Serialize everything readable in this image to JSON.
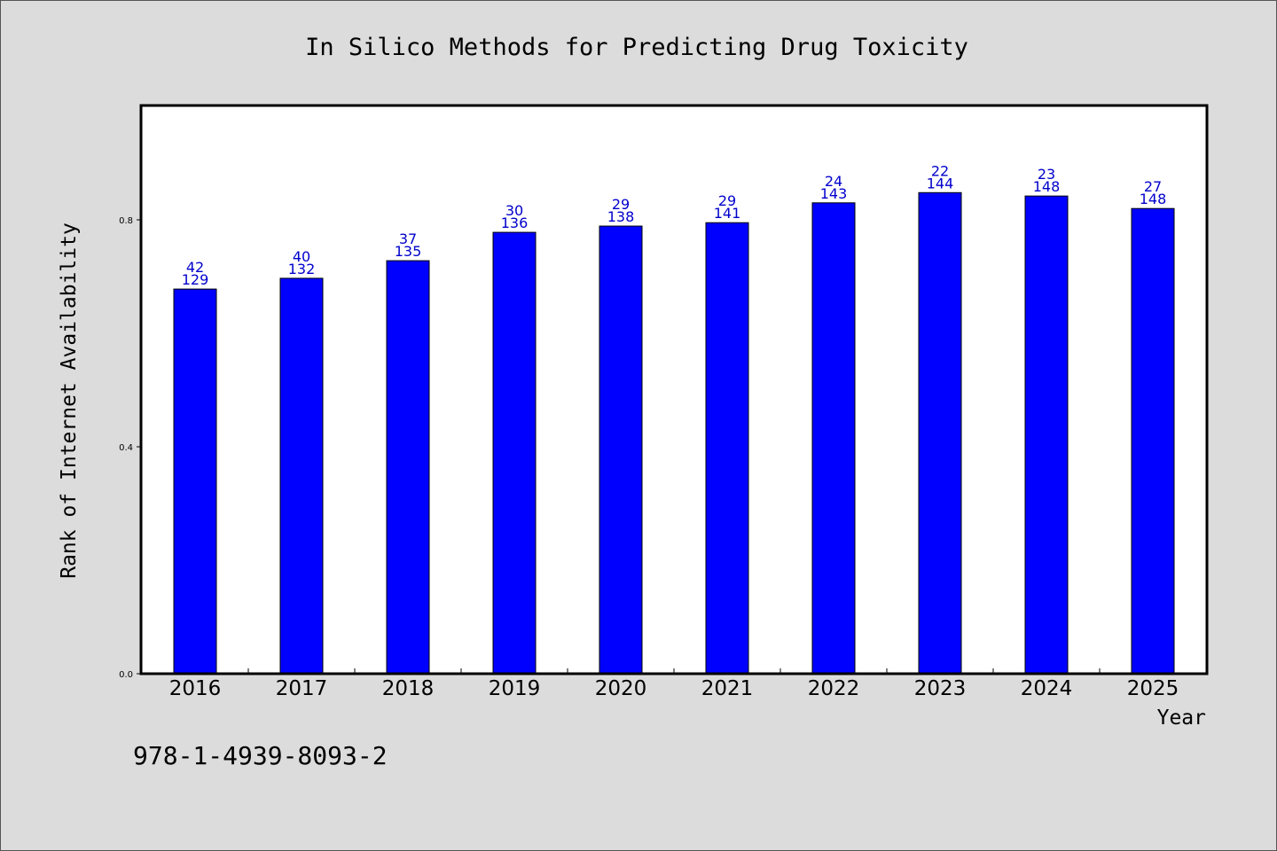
{
  "chart_data": {
    "type": "bar",
    "title": "In Silico Methods for Predicting Drug Toxicity",
    "xlabel": "Year",
    "ylabel": "Rank of Internet Availability",
    "categories": [
      "2016",
      "2017",
      "2018",
      "2019",
      "2020",
      "2021",
      "2022",
      "2023",
      "2024",
      "2025"
    ],
    "series": [
      {
        "values": [
          0.678,
          0.697,
          0.728,
          0.778,
          0.789,
          0.795,
          0.83,
          0.848,
          0.842,
          0.82
        ],
        "label_top": [
          "42",
          "40",
          "37",
          "30",
          "29",
          "29",
          "24",
          "22",
          "23",
          "27"
        ],
        "label_bottom": [
          "129",
          "132",
          "135",
          "136",
          "138",
          "141",
          "143",
          "144",
          "148",
          "148"
        ]
      }
    ],
    "ylim": [
      0,
      1.0
    ],
    "yticks": [
      "0.0",
      "0.4",
      "0.8"
    ],
    "grid": false,
    "colors": {
      "bar": "#0000ff",
      "bar_edge": "#000000",
      "data_label": "#0000cc",
      "background": "#dcdcdc",
      "plot_bg": "#ffffff"
    }
  },
  "isbn": "978-1-4939-8093-2"
}
